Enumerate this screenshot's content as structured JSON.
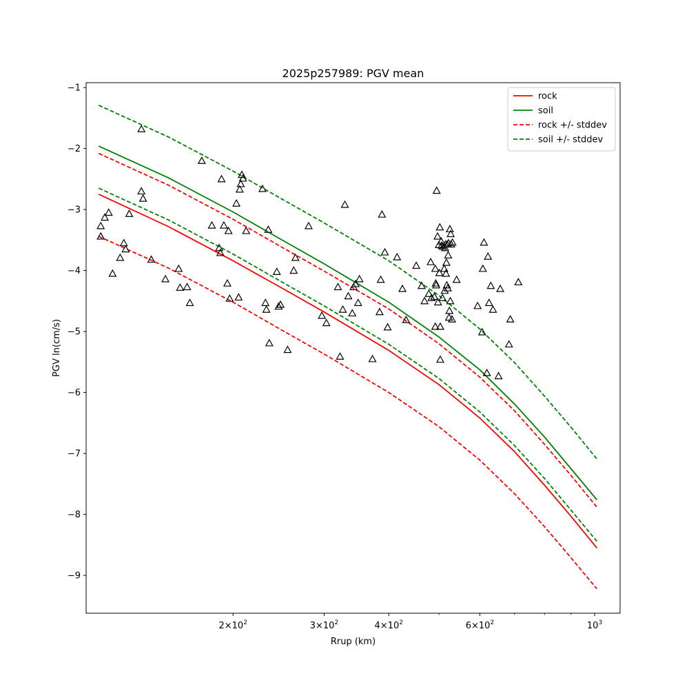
{
  "chart_data": {
    "type": "line",
    "title": "2025p257989: PGV mean",
    "xlabel": "Rrup (km)",
    "ylabel": "PGV ln(cm/s)",
    "x_scale": "log",
    "xlim": [
      104,
      1120
    ],
    "ylim": [
      -9.62,
      -0.92
    ],
    "y_ticks": [
      -1,
      -2,
      -3,
      -4,
      -5,
      -6,
      -7,
      -8,
      -9
    ],
    "y_tick_labels": [
      "−1",
      "−2",
      "−3",
      "−4",
      "−5",
      "−6",
      "−7",
      "−8",
      "−9"
    ],
    "x_major_ticks": [
      200,
      300,
      400,
      600,
      1000
    ],
    "x_major_tick_labels": [
      {
        "base": "2×10",
        "exp": "2"
      },
      {
        "base": "3×10",
        "exp": "2"
      },
      {
        "base": "4×10",
        "exp": "2"
      },
      {
        "base": "6×10",
        "exp": "2"
      },
      {
        "base": "10",
        "exp": "3"
      }
    ],
    "x_minor_ticks": [
      500,
      700,
      800,
      900
    ],
    "grid": false,
    "legend_position": "top-right",
    "series": [
      {
        "name": "rock",
        "color": "#ff0000",
        "dash": "solid",
        "x": [
          110,
          150,
          200,
          250,
          300,
          400,
          500,
          600,
          700,
          800,
          900,
          1010
        ],
        "y": [
          -2.75,
          -3.28,
          -3.84,
          -4.3,
          -4.68,
          -5.31,
          -5.87,
          -6.42,
          -6.97,
          -7.52,
          -8.03,
          -8.55
        ]
      },
      {
        "name": "soil",
        "color": "#008000",
        "dash": "solid",
        "x": [
          110,
          150,
          200,
          250,
          300,
          400,
          500,
          600,
          700,
          800,
          900,
          1010
        ],
        "y": [
          -1.96,
          -2.48,
          -3.04,
          -3.51,
          -3.89,
          -4.52,
          -5.09,
          -5.63,
          -6.19,
          -6.73,
          -7.25,
          -7.76
        ]
      },
      {
        "name": "rock +/- stddev",
        "color": "#ff0000",
        "dash": "dashed",
        "x": [
          110,
          150,
          200,
          250,
          300,
          400,
          500,
          600,
          700,
          800,
          900,
          1010
        ],
        "y": [
          -2.08,
          -2.6,
          -3.16,
          -3.63,
          -4.01,
          -4.63,
          -5.2,
          -5.75,
          -6.3,
          -6.85,
          -7.36,
          -7.88
        ]
      },
      {
        "name": "",
        "color": "#ff0000",
        "dash": "dashed",
        "x": [
          110,
          150,
          200,
          250,
          300,
          400,
          500,
          600,
          700,
          800,
          900,
          1010
        ],
        "y": [
          -3.44,
          -3.96,
          -4.52,
          -4.99,
          -5.37,
          -6.0,
          -6.56,
          -7.11,
          -7.66,
          -8.2,
          -8.71,
          -9.22
        ]
      },
      {
        "name": "soil +/- stddev",
        "color": "#008000",
        "dash": "dashed",
        "x": [
          110,
          150,
          200,
          250,
          300,
          400,
          500,
          600,
          700,
          800,
          900,
          1010
        ],
        "y": [
          -1.29,
          -1.81,
          -2.37,
          -2.84,
          -3.22,
          -3.84,
          -4.41,
          -4.96,
          -5.51,
          -6.06,
          -6.57,
          -7.09
        ]
      },
      {
        "name": "",
        "color": "#008000",
        "dash": "dashed",
        "x": [
          110,
          150,
          200,
          250,
          300,
          400,
          500,
          600,
          700,
          800,
          900,
          1010
        ],
        "y": [
          -2.65,
          -3.17,
          -3.73,
          -4.2,
          -4.58,
          -5.21,
          -5.77,
          -6.32,
          -6.87,
          -7.41,
          -7.93,
          -8.44
        ]
      }
    ],
    "observations": {
      "marker": "triangle",
      "color": "#000000",
      "points": [
        [
          133,
          -1.68
        ],
        [
          111,
          -3.27
        ],
        [
          111,
          -3.44
        ],
        [
          113,
          -3.13
        ],
        [
          115,
          -3.05
        ],
        [
          117,
          -4.05
        ],
        [
          121,
          -3.79
        ],
        [
          123,
          -3.55
        ],
        [
          124,
          -3.65
        ],
        [
          126,
          -3.07
        ],
        [
          133,
          -2.7
        ],
        [
          134,
          -2.82
        ],
        [
          139,
          -3.82
        ],
        [
          148,
          -4.14
        ],
        [
          157,
          -3.97
        ],
        [
          158,
          -4.28
        ],
        [
          163,
          -4.27
        ],
        [
          165,
          -4.53
        ],
        [
          174,
          -2.2
        ],
        [
          182,
          -3.26
        ],
        [
          188,
          -3.63
        ],
        [
          189,
          -3.71
        ],
        [
          190,
          -2.5
        ],
        [
          192,
          -3.26
        ],
        [
          195,
          -4.21
        ],
        [
          197,
          -4.46
        ],
        [
          196,
          -3.35
        ],
        [
          203,
          -2.9
        ],
        [
          205,
          -4.44
        ],
        [
          206,
          -2.67
        ],
        [
          207,
          -2.58
        ],
        [
          208,
          -2.43
        ],
        [
          209,
          -2.49
        ],
        [
          212,
          -3.35
        ],
        [
          228,
          -2.66
        ],
        [
          231,
          -4.53
        ],
        [
          232,
          -4.64
        ],
        [
          234,
          -3.33
        ],
        [
          235,
          -5.19
        ],
        [
          243,
          -4.02
        ],
        [
          245,
          -4.59
        ],
        [
          247,
          -4.56
        ],
        [
          255,
          -5.3
        ],
        [
          262,
          -4.0
        ],
        [
          264,
          -3.79
        ],
        [
          280,
          -3.27
        ],
        [
          297,
          -4.74
        ],
        [
          303,
          -4.86
        ],
        [
          319,
          -4.27
        ],
        [
          322,
          -5.41
        ],
        [
          326,
          -4.64
        ],
        [
          329,
          -2.92
        ],
        [
          334,
          -4.42
        ],
        [
          340,
          -4.7
        ],
        [
          342,
          -4.27
        ],
        [
          345,
          -4.22
        ],
        [
          349,
          -4.53
        ],
        [
          351,
          -4.14
        ],
        [
          372,
          -5.45
        ],
        [
          384,
          -4.68
        ],
        [
          386,
          -4.15
        ],
        [
          388,
          -3.08
        ],
        [
          393,
          -3.7
        ],
        [
          398,
          -4.93
        ],
        [
          415,
          -3.78
        ],
        [
          425,
          -4.3
        ],
        [
          432,
          -4.81
        ],
        [
          452,
          -3.92
        ],
        [
          463,
          -4.25
        ],
        [
          469,
          -4.5
        ],
        [
          478,
          -4.38
        ],
        [
          482,
          -3.86
        ],
        [
          484,
          -4.45
        ],
        [
          490,
          -4.43
        ],
        [
          492,
          -4.92
        ],
        [
          492,
          -3.97
        ],
        [
          493,
          -4.21
        ],
        [
          494,
          -4.24
        ],
        [
          495,
          -2.69
        ],
        [
          497,
          -3.44
        ],
        [
          498,
          -4.52
        ],
        [
          500,
          -3.58
        ],
        [
          501,
          -4.04
        ],
        [
          502,
          -3.29
        ],
        [
          503,
          -4.92
        ],
        [
          503,
          -5.46
        ],
        [
          505,
          -3.52
        ],
        [
          506,
          -3.59
        ],
        [
          508,
          -4.45
        ],
        [
          509,
          -3.61
        ],
        [
          512,
          -3.97
        ],
        [
          513,
          -4.33
        ],
        [
          514,
          -3.63
        ],
        [
          515,
          -3.57
        ],
        [
          516,
          -4.05
        ],
        [
          517,
          -3.87
        ],
        [
          518,
          -4.24
        ],
        [
          519,
          -3.57
        ],
        [
          520,
          -4.29
        ],
        [
          521,
          -3.75
        ],
        [
          522,
          -3.55
        ],
        [
          523,
          -4.77
        ],
        [
          524,
          -4.66
        ],
        [
          525,
          -3.32
        ],
        [
          526,
          -4.5
        ],
        [
          527,
          -3.4
        ],
        [
          528,
          -3.57
        ],
        [
          530,
          -4.8
        ],
        [
          531,
          -3.54
        ],
        [
          541,
          -4.15
        ],
        [
          594,
          -4.58
        ],
        [
          606,
          -5.01
        ],
        [
          608,
          -3.97
        ],
        [
          611,
          -3.54
        ],
        [
          619,
          -5.68
        ],
        [
          622,
          -3.77
        ],
        [
          625,
          -4.53
        ],
        [
          630,
          -4.25
        ],
        [
          636,
          -4.64
        ],
        [
          652,
          -5.73
        ],
        [
          657,
          -4.3
        ],
        [
          683,
          -5.21
        ],
        [
          687,
          -4.8
        ],
        [
          712,
          -4.19
        ]
      ]
    }
  }
}
